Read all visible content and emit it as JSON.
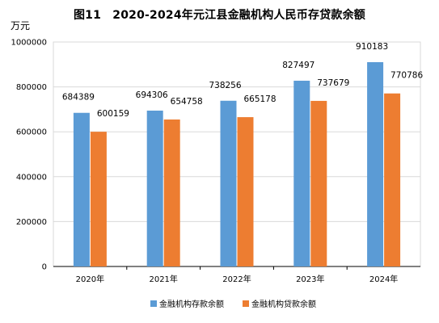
{
  "colors": {
    "deposit": "#5b9bd5",
    "loan": "#ed7d31",
    "grid": "#d9d9d9",
    "axis": "#000000"
  },
  "chart_data": {
    "type": "bar",
    "title": "图11　2020-2024年元江县金融机构人民币存贷款余额",
    "unit": "万元",
    "categories": [
      "2020年",
      "2021年",
      "2022年",
      "2023年",
      "2024年"
    ],
    "ylim": [
      0,
      1000000
    ],
    "yticks": [
      "0",
      "200000",
      "400000",
      "600000",
      "800000",
      "1000000"
    ],
    "grid": true,
    "legend_position": "bottom",
    "series": [
      {
        "name": "金融机构存款余额",
        "values": [
          684389,
          694306,
          738256,
          827497,
          910183
        ],
        "labels": [
          "684389",
          "694306",
          "738256",
          "827497",
          "910183"
        ]
      },
      {
        "name": "金融机构贷款余额",
        "values": [
          600159,
          654758,
          665178,
          737679,
          770786
        ],
        "labels": [
          "600159",
          "654758",
          "665178",
          "737679",
          "770786"
        ]
      }
    ]
  }
}
